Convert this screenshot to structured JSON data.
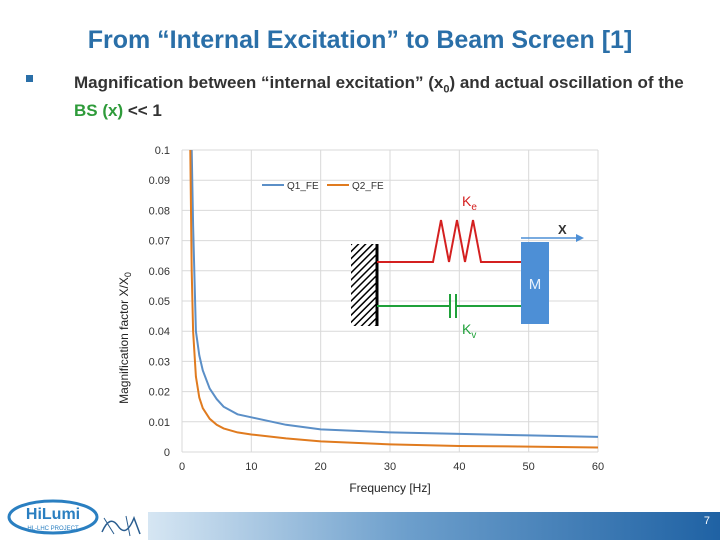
{
  "slide": {
    "title": "From “Internal Excitation” to Beam Screen [1]",
    "bullet_1": "Magnification between “internal excitation” (x",
    "bullet_sub": "0",
    "bullet_2": ") and actual oscillation of the ",
    "bullet_green": "BS (x)",
    "bullet_3": " << 1",
    "page_number": "7"
  },
  "logo": {
    "main": "HiLumi",
    "sub": "HL-LHC PROJECT"
  },
  "inset": {
    "spring_label": "K",
    "spring_sub": "e",
    "damper_label": "K",
    "damper_sub": "v",
    "mass_label": "M",
    "x_label": "X"
  },
  "colors": {
    "title": "#2a6fa8",
    "q1": "#5b8fc7",
    "q2": "#e07b1f",
    "spring": "#d42020",
    "damper": "#1fa13a",
    "mass": "#4d8fd6"
  },
  "chart_data": {
    "type": "line",
    "xlabel": "Frequency [Hz]",
    "ylabel": "Magnification factor X/X",
    "ylabel_sub": "0",
    "xlim": [
      0,
      60
    ],
    "ylim": [
      0,
      0.1
    ],
    "xticks": [
      "0",
      "10",
      "20",
      "30",
      "40",
      "50",
      "60"
    ],
    "yticks": [
      "0",
      "0.01",
      "0.02",
      "0.03",
      "0.04",
      "0.05",
      "0.06",
      "0.07",
      "0.08",
      "0.09",
      "0.1"
    ],
    "grid": true,
    "legend_position": "top",
    "series": [
      {
        "name": "Q1_FE",
        "x": [
          1.4,
          1.6,
          2,
          2.5,
          3,
          4,
          5,
          6,
          8,
          10,
          15,
          20,
          30,
          40,
          50,
          60
        ],
        "y": [
          0.1,
          0.075,
          0.04,
          0.032,
          0.027,
          0.021,
          0.0175,
          0.015,
          0.0125,
          0.0115,
          0.009,
          0.0075,
          0.0065,
          0.006,
          0.0055,
          0.005
        ]
      },
      {
        "name": "Q2_FE",
        "x": [
          1.2,
          1.4,
          1.6,
          2,
          2.5,
          3,
          4,
          5,
          6,
          8,
          10,
          15,
          20,
          30,
          40,
          50,
          60
        ],
        "y": [
          0.1,
          0.06,
          0.04,
          0.025,
          0.018,
          0.0145,
          0.011,
          0.009,
          0.0078,
          0.0065,
          0.0058,
          0.0045,
          0.0035,
          0.0025,
          0.002,
          0.0018,
          0.0015
        ]
      }
    ]
  }
}
